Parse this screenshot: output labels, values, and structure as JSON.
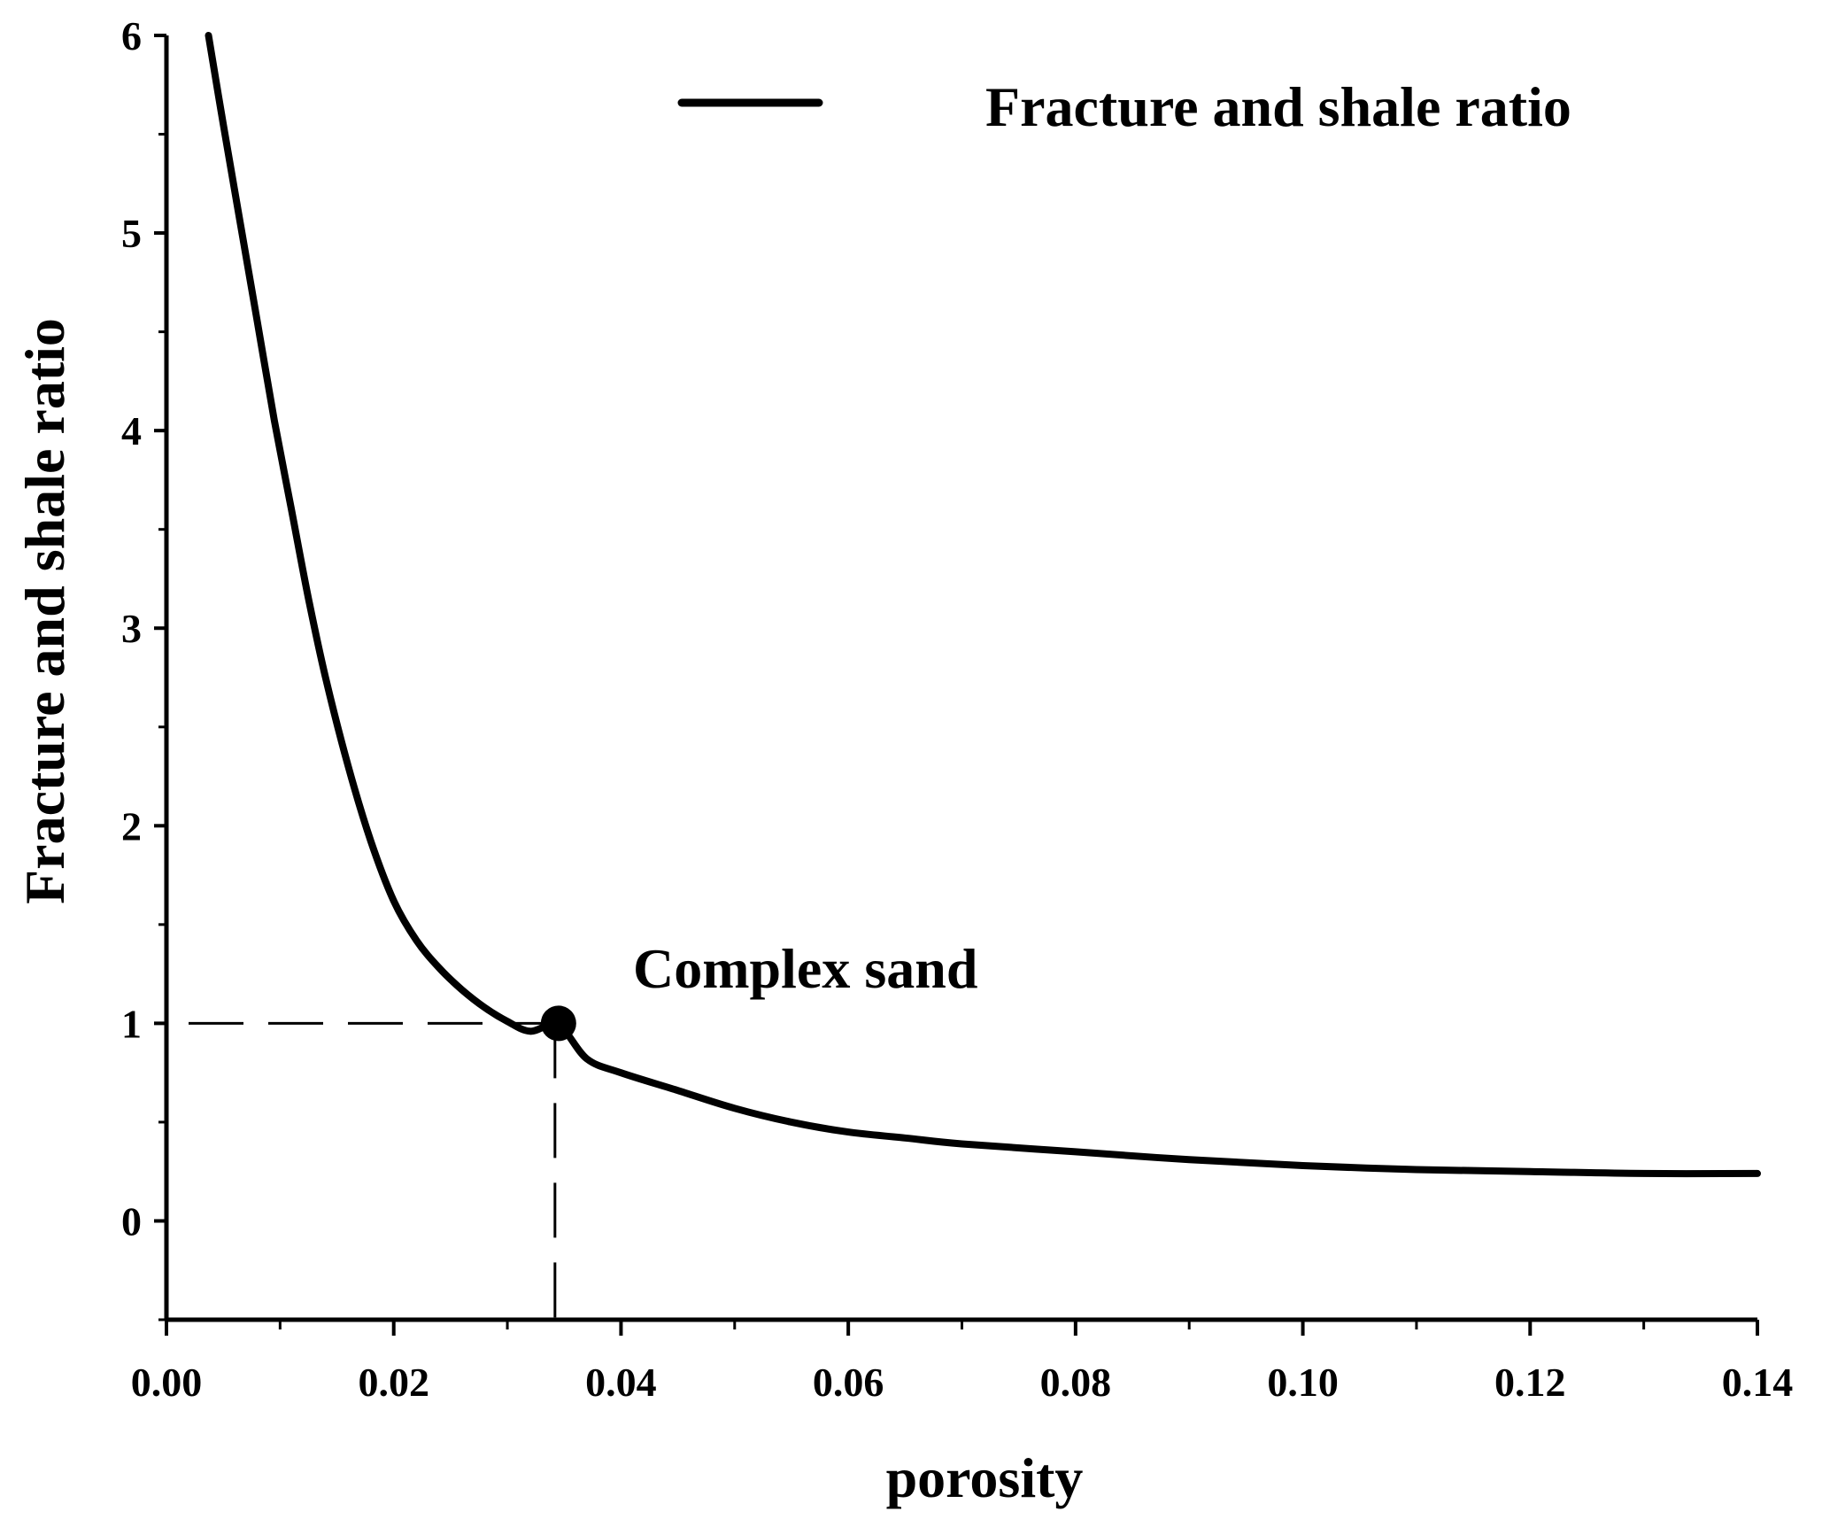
{
  "chart_data": {
    "type": "line",
    "title": "",
    "xlabel": "porosity",
    "ylabel": "Fracture and shale ratio",
    "xlim": [
      0,
      0.14
    ],
    "ylim": [
      -0.5,
      6
    ],
    "x_ticks": [
      "0.00",
      "0.02",
      "0.04",
      "0.06",
      "0.08",
      "0.10",
      "0.12",
      "0.14"
    ],
    "x_tick_values": [
      0,
      0.02,
      0.04,
      0.06,
      0.08,
      0.1,
      0.12,
      0.14
    ],
    "y_ticks": [
      "0",
      "1",
      "2",
      "3",
      "4",
      "5",
      "6"
    ],
    "y_tick_values": [
      0,
      1,
      2,
      3,
      4,
      5,
      6
    ],
    "grid": false,
    "legend_position": "top-right",
    "series": [
      {
        "name": "Fracture and shale ratio",
        "color": "#000000",
        "x": [
          0.0037,
          0.005,
          0.0065,
          0.008,
          0.0095,
          0.011,
          0.0125,
          0.014,
          0.016,
          0.018,
          0.02,
          0.022,
          0.024,
          0.026,
          0.028,
          0.03,
          0.032,
          0.0345,
          0.037,
          0.04,
          0.045,
          0.05,
          0.055,
          0.06,
          0.065,
          0.07,
          0.08,
          0.09,
          0.1,
          0.11,
          0.12,
          0.13,
          0.14
        ],
        "y": [
          6.0,
          5.55,
          5.05,
          4.55,
          4.05,
          3.6,
          3.15,
          2.75,
          2.3,
          1.92,
          1.62,
          1.42,
          1.28,
          1.17,
          1.08,
          1.01,
          0.96,
          0.99,
          0.82,
          0.75,
          0.66,
          0.57,
          0.5,
          0.45,
          0.42,
          0.39,
          0.35,
          0.31,
          0.28,
          0.26,
          0.25,
          0.24,
          0.24
        ]
      }
    ],
    "highlight_point": {
      "x": 0.0345,
      "y": 1.0,
      "label": "Complex sand"
    }
  }
}
